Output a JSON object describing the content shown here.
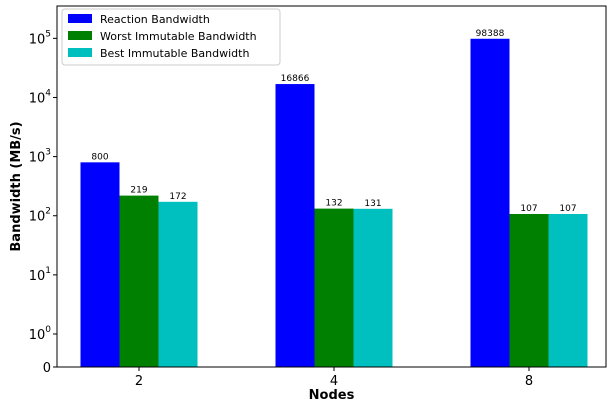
{
  "chart_data": {
    "type": "bar",
    "title": "",
    "xlabel": "Nodes",
    "ylabel": "Bandwidth (MB/s)",
    "yscale": "symlog",
    "ylim": [
      0,
      100000
    ],
    "grid": false,
    "legend_position": "top-left",
    "categories": [
      "2",
      "4",
      "8"
    ],
    "y_tick_values": [
      0,
      1,
      10,
      100,
      1000,
      10000,
      100000
    ],
    "y_tick_labels": [
      {
        "base": "0",
        "exp": ""
      },
      {
        "base": "10",
        "exp": "0"
      },
      {
        "base": "10",
        "exp": "1"
      },
      {
        "base": "10",
        "exp": "2"
      },
      {
        "base": "10",
        "exp": "3"
      },
      {
        "base": "10",
        "exp": "4"
      },
      {
        "base": "10",
        "exp": "5"
      }
    ],
    "series": [
      {
        "name": "Reaction Bandwidth",
        "color": "#0000ff",
        "values": [
          800,
          16866,
          98388
        ],
        "labels": [
          "800",
          "16866",
          "98388"
        ]
      },
      {
        "name": "Worst Immutable Bandwidth",
        "color": "#008000",
        "values": [
          219,
          132,
          107
        ],
        "labels": [
          "219",
          "132",
          "107"
        ]
      },
      {
        "name": "Best Immutable Bandwidth",
        "color": "#00bfbf",
        "values": [
          172,
          131,
          107
        ],
        "labels": [
          "172",
          "131",
          "107"
        ]
      }
    ]
  }
}
